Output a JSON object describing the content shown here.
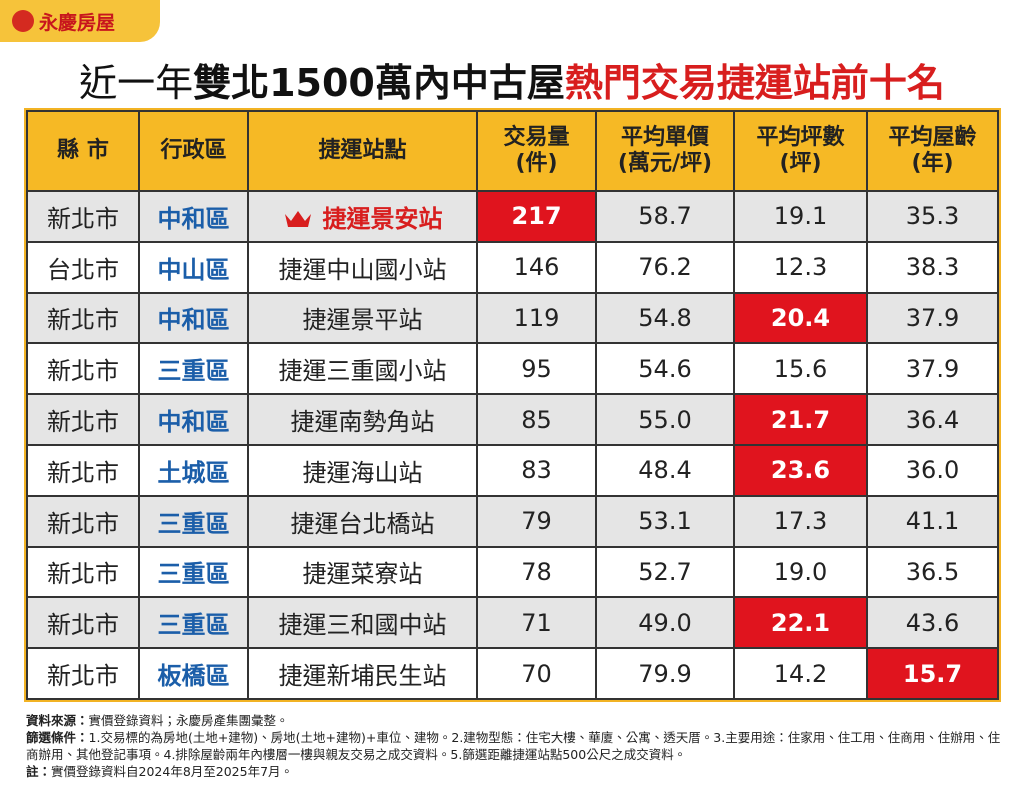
{
  "header": {
    "logo": "永慶房屋",
    "title": [
      {
        "text": "近一年",
        "style": "normal"
      },
      {
        "text": "雙北1500萬內中古屋",
        "style": "bold"
      },
      {
        "text": "熱門交易捷運站前十名",
        "style": "red"
      }
    ]
  },
  "table": {
    "columns": [
      "縣 市",
      "行政區",
      "捷運站點",
      "交易量\n(件)",
      "平均單價\n(萬元/坪)",
      "平均坪數\n(坪)",
      "平均屋齡\n(年)"
    ],
    "rows": [
      [
        "新北市",
        "中和區",
        "捷運景安站",
        "217",
        "58.7",
        "19.1",
        "35.3"
      ],
      [
        "台北市",
        "中山區",
        "捷運中山國小站",
        "146",
        "76.2",
        "12.3",
        "38.3"
      ],
      [
        "新北市",
        "中和區",
        "捷運景平站",
        "119",
        "54.8",
        "20.4",
        "37.9"
      ],
      [
        "新北市",
        "三重區",
        "捷運三重國小站",
        "95",
        "54.6",
        "15.6",
        "37.9"
      ],
      [
        "新北市",
        "中和區",
        "捷運南勢角站",
        "85",
        "55.0",
        "21.7",
        "36.4"
      ],
      [
        "新北市",
        "土城區",
        "捷運海山站",
        "83",
        "48.4",
        "23.6",
        "36.0"
      ],
      [
        "新北市",
        "三重區",
        "捷運台北橋站",
        "79",
        "53.1",
        "17.3",
        "41.1"
      ],
      [
        "新北市",
        "三重區",
        "捷運菜寮站",
        "78",
        "52.7",
        "19.0",
        "36.5"
      ],
      [
        "新北市",
        "三重區",
        "捷運三和國中站",
        "71",
        "49.0",
        "22.1",
        "43.6"
      ],
      [
        "新北市",
        "板橋區",
        "捷運新埔民生站",
        "70",
        "79.9",
        "14.2",
        "15.7"
      ]
    ],
    "highlight": [
      [
        0,
        3
      ],
      [
        2,
        5
      ],
      [
        4,
        5
      ],
      [
        5,
        5
      ],
      [
        8,
        5
      ],
      [
        9,
        6
      ]
    ],
    "featured_cell": [
      0,
      2
    ]
  },
  "notes": [
    {
      "label": "資料來源：",
      "text": "實價登錄資料；永慶房產集團彙整。"
    },
    {
      "label": "篩選條件：",
      "text": "1.交易標的為房地(土地+建物)、房地(土地+建物)+車位、建物。2.建物型態：住宅大樓、華廈、公寓、透天厝。3.主要用途：住家用、住工用、住商用、住辦用、住商辦用、其他登記事項。4.排除屋齡兩年內樓層一樓與親友交易之成交資料。5.篩選距離捷運站點500公尺之成交資料。"
    },
    {
      "label": "註：",
      "text": "實價登錄資料自2024年8月至2025年7月。"
    }
  ]
}
